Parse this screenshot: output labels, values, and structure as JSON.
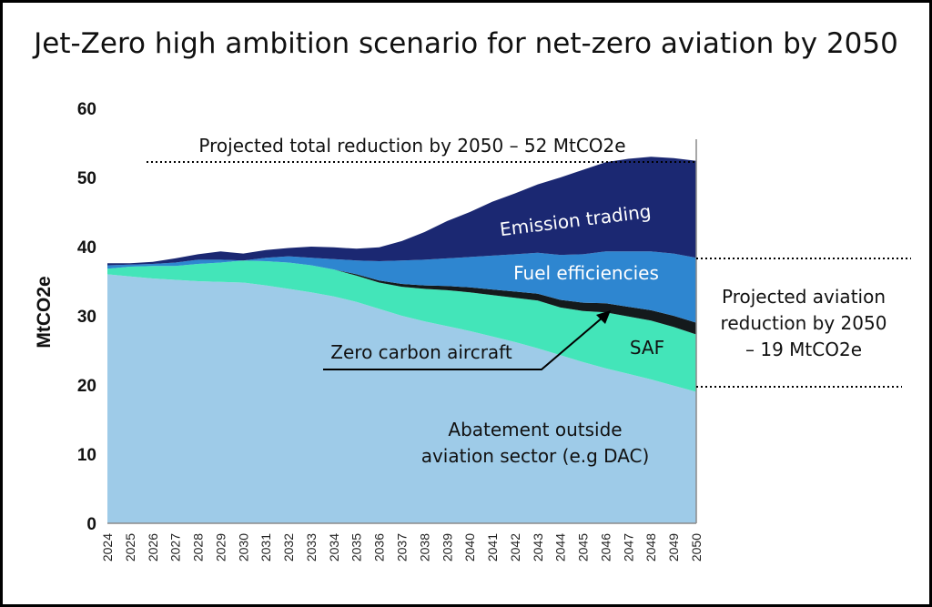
{
  "chart_data": {
    "type": "area",
    "title": "Jet-Zero high ambition scenario for net-zero aviation by 2050",
    "ylabel": "MtCO2e",
    "xlabel": "",
    "ylim": [
      0,
      60
    ],
    "yticks": [
      0,
      10,
      20,
      30,
      40,
      50,
      60
    ],
    "x": [
      2024,
      2025,
      2026,
      2027,
      2028,
      2029,
      2030,
      2031,
      2032,
      2033,
      2034,
      2035,
      2036,
      2037,
      2038,
      2039,
      2040,
      2041,
      2042,
      2043,
      2044,
      2045,
      2046,
      2047,
      2048,
      2049,
      2050
    ],
    "xtick_labels": [
      "2024",
      "2025",
      "2026",
      "2027",
      "2028",
      "2029",
      "2030",
      "2031",
      "2032",
      "2033",
      "2034",
      "2035",
      "2036",
      "2037",
      "2038",
      "2039",
      "2040",
      "2041",
      "2042",
      "2043",
      "2044",
      "2045",
      "2046",
      "2047",
      "2048",
      "2049",
      "2050"
    ],
    "stack_order": "bottom-to-top",
    "series": [
      {
        "name": "Abatement outside aviation sector (e.g DAC)",
        "color": "#9ecbe8",
        "values": [
          36.0,
          35.7,
          35.4,
          35.2,
          35.0,
          34.9,
          34.8,
          34.4,
          33.9,
          33.4,
          32.8,
          32.0,
          31.0,
          30.0,
          29.2,
          28.5,
          27.8,
          27.0,
          26.2,
          25.3,
          24.3,
          23.3,
          22.4,
          21.6,
          20.8,
          19.9,
          19.0
        ]
      },
      {
        "name": "SAF",
        "color": "#43e5b9",
        "values": [
          0.8,
          1.4,
          1.8,
          2.0,
          2.5,
          2.8,
          3.2,
          3.5,
          3.8,
          3.9,
          3.9,
          3.8,
          3.8,
          4.2,
          4.7,
          5.2,
          5.6,
          6.0,
          6.4,
          6.9,
          6.9,
          7.4,
          8.1,
          8.3,
          8.5,
          8.5,
          8.3
        ]
      },
      {
        "name": "Zero carbon aircraft",
        "color": "#141a1c",
        "values": [
          0,
          0,
          0,
          0,
          0,
          0,
          0,
          0,
          0,
          0,
          0,
          0.2,
          0.3,
          0.4,
          0.5,
          0.6,
          0.7,
          0.8,
          0.9,
          1.0,
          1.1,
          1.2,
          1.3,
          1.4,
          1.5,
          1.6,
          1.7
        ]
      },
      {
        "name": "Fuel efficiencies",
        "color": "#2e86d0",
        "values": [
          0.5,
          0.3,
          0.3,
          0.5,
          0.6,
          0.4,
          0.0,
          0.5,
          0.9,
          1.1,
          1.5,
          2.0,
          2.8,
          3.4,
          3.7,
          4.0,
          4.4,
          4.9,
          5.4,
          5.9,
          6.5,
          7.0,
          7.5,
          8.0,
          8.5,
          9.0,
          9.4
        ]
      },
      {
        "name": "Emission trading",
        "color": "#1b2872",
        "values": [
          0.3,
          0.2,
          0.3,
          0.6,
          0.8,
          1.2,
          1.0,
          1.1,
          1.2,
          1.6,
          1.7,
          1.7,
          2.0,
          2.8,
          4.0,
          5.4,
          6.5,
          7.8,
          8.8,
          9.9,
          11.2,
          12.2,
          12.9,
          13.4,
          13.7,
          13.8,
          14.0
        ]
      }
    ],
    "labels": {
      "emission_trading": "Emission trading",
      "fuel_efficiencies": "Fuel efficiencies",
      "saf": "SAF",
      "zero_carbon": "Zero carbon aircraft",
      "abatement_line1": "Abatement outside",
      "abatement_line2": "aviation sector (e.g DAC)"
    },
    "annotations": {
      "total_reduction": "Projected total reduction by 2050 – 52 MtCO2e",
      "aviation_line1": "Projected aviation",
      "aviation_line2": "reduction by 2050",
      "aviation_line3": "– 19 MtCO2e"
    }
  }
}
